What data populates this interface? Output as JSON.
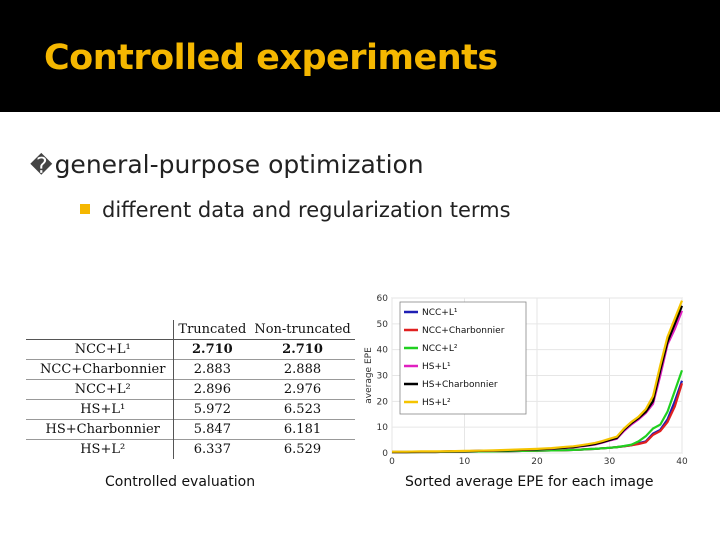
{
  "slide": {
    "title": "Controlled experiments",
    "bullet1_mark": "�",
    "bullet1": "general-purpose optimization",
    "bullet2": "different data and regularization terms",
    "caption_left": "Controlled evaluation",
    "caption_right": "Sorted average EPE for each image"
  },
  "table": {
    "headers": [
      "",
      "Truncated",
      "Non-truncated"
    ],
    "rows": [
      {
        "method": "NCC+L¹",
        "truncated": "2.710",
        "non_truncated": "2.710"
      },
      {
        "method": "NCC+Charbonnier",
        "truncated": "2.883",
        "non_truncated": "2.888"
      },
      {
        "method": "NCC+L²",
        "truncated": "2.896",
        "non_truncated": "2.976"
      },
      {
        "method": "HS+L¹",
        "truncated": "5.972",
        "non_truncated": "6.523"
      },
      {
        "method": "HS+Charbonnier",
        "truncated": "5.847",
        "non_truncated": "6.181"
      },
      {
        "method": "HS+L²",
        "truncated": "6.337",
        "non_truncated": "6.529"
      }
    ]
  },
  "chart_data": {
    "type": "line",
    "title": "",
    "xlabel": "",
    "ylabel": "average EPE",
    "xlim": [
      0,
      40
    ],
    "ylim": [
      0,
      60
    ],
    "xticks": [
      0,
      10,
      20,
      30,
      40
    ],
    "yticks": [
      0,
      10,
      20,
      30,
      40,
      50,
      60
    ],
    "legend_position": "top-left",
    "x": [
      0,
      2,
      4,
      6,
      8,
      10,
      12,
      14,
      16,
      18,
      20,
      22,
      24,
      25,
      26,
      27,
      28,
      29,
      30,
      31,
      32,
      33,
      34,
      35,
      36,
      37,
      38,
      39,
      40
    ],
    "series": [
      {
        "name": "NCC+L¹",
        "color": "#1f1fb4",
        "values": [
          0.3,
          0.3,
          0.4,
          0.4,
          0.5,
          0.5,
          0.6,
          0.6,
          0.7,
          0.8,
          0.9,
          1.0,
          1.1,
          1.2,
          1.3,
          1.5,
          1.6,
          1.8,
          2.0,
          2.3,
          2.6,
          3.0,
          3.8,
          4.5,
          7.5,
          9.0,
          13.0,
          20.0,
          28.0
        ]
      },
      {
        "name": "NCC+Charbonnier",
        "color": "#e02020",
        "values": [
          0.3,
          0.3,
          0.4,
          0.4,
          0.5,
          0.5,
          0.6,
          0.6,
          0.7,
          0.8,
          0.9,
          1.0,
          1.1,
          1.2,
          1.3,
          1.5,
          1.6,
          1.8,
          2.0,
          2.3,
          2.6,
          3.0,
          3.5,
          4.2,
          7.0,
          8.5,
          12.0,
          18.0,
          27.0
        ]
      },
      {
        "name": "NCC+L²",
        "color": "#20d020",
        "values": [
          0.3,
          0.3,
          0.4,
          0.4,
          0.5,
          0.5,
          0.6,
          0.6,
          0.7,
          0.8,
          0.9,
          1.0,
          1.1,
          1.2,
          1.3,
          1.5,
          1.6,
          1.8,
          2.0,
          2.3,
          2.7,
          3.2,
          4.5,
          6.5,
          9.5,
          11.0,
          16.0,
          24.0,
          32.0
        ]
      },
      {
        "name": "HS+L¹",
        "color": "#e020c0",
        "values": [
          0.4,
          0.4,
          0.5,
          0.5,
          0.6,
          0.7,
          0.8,
          0.9,
          1.0,
          1.2,
          1.4,
          1.6,
          2.0,
          2.2,
          2.5,
          2.9,
          3.3,
          4.0,
          4.8,
          5.5,
          8.5,
          11.0,
          13.0,
          15.5,
          19.0,
          30.0,
          42.0,
          48.0,
          55.0
        ]
      },
      {
        "name": "HS+Charbonnier",
        "color": "#000000",
        "values": [
          0.4,
          0.4,
          0.5,
          0.5,
          0.6,
          0.7,
          0.8,
          0.9,
          1.0,
          1.2,
          1.4,
          1.7,
          2.1,
          2.3,
          2.7,
          3.0,
          3.5,
          4.2,
          5.0,
          5.8,
          9.0,
          11.5,
          13.5,
          16.0,
          20.0,
          32.0,
          43.0,
          50.0,
          57.0
        ]
      },
      {
        "name": "HS+L²",
        "color": "#f5c400",
        "values": [
          0.5,
          0.5,
          0.6,
          0.6,
          0.7,
          0.8,
          0.9,
          1.0,
          1.2,
          1.4,
          1.6,
          1.9,
          2.4,
          2.6,
          3.0,
          3.4,
          3.9,
          4.6,
          5.5,
          6.3,
          9.5,
          12.0,
          14.0,
          17.0,
          22.0,
          34.0,
          45.0,
          52.0,
          59.0
        ]
      }
    ]
  }
}
